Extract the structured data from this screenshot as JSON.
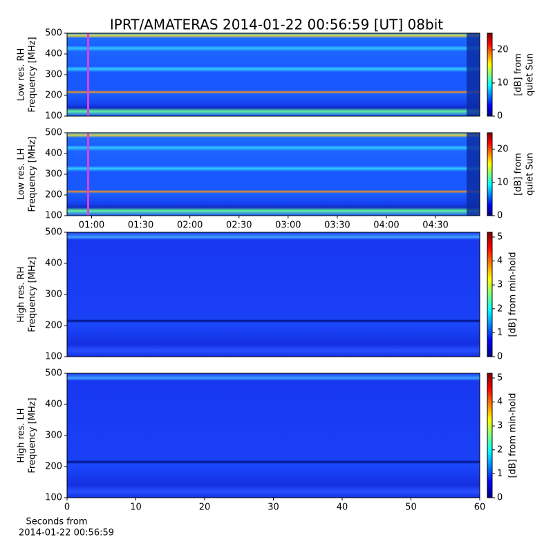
{
  "title": "IPRT/AMATERAS 2014-01-22 00:56:59 [UT]   08bit",
  "chart_data": [
    {
      "type": "heatmap",
      "ylabel": [
        "Low res. RH",
        "Frequency [MHz]"
      ],
      "ylim": [
        100,
        500
      ],
      "yticks": [
        100,
        200,
        300,
        400,
        500
      ],
      "xlim": [
        "00:45",
        "04:57"
      ],
      "colorbar": {
        "label": [
          "[dB] from",
          "quiet Sun"
        ],
        "lim": [
          0,
          25
        ],
        "ticks": [
          0,
          10,
          20
        ]
      }
    },
    {
      "type": "heatmap",
      "ylabel": [
        "Low res. LH",
        "Frequency [MHz]"
      ],
      "ylim": [
        100,
        500
      ],
      "yticks": [
        100,
        200,
        300,
        400,
        500
      ],
      "xlim": [
        "00:45",
        "04:57"
      ],
      "xticks": [
        "01:00",
        "01:30",
        "02:00",
        "02:30",
        "03:00",
        "03:30",
        "04:00",
        "04:30"
      ],
      "colorbar": {
        "label": [
          "[dB] from",
          "quiet Sun"
        ],
        "lim": [
          0,
          25
        ],
        "ticks": [
          0,
          10,
          20
        ]
      }
    },
    {
      "type": "heatmap",
      "ylabel": [
        "High res. RH",
        "Frequency [MHz]"
      ],
      "ylim": [
        100,
        500
      ],
      "yticks": [
        100,
        200,
        300,
        400,
        500
      ],
      "xlim": [
        0,
        60
      ],
      "colorbar": {
        "label": [
          "[dB] from min-hold"
        ],
        "lim": [
          0,
          5.2
        ],
        "ticks": [
          0,
          1,
          2,
          3,
          4,
          5
        ]
      }
    },
    {
      "type": "heatmap",
      "ylabel": [
        "High res. LH",
        "Frequency [MHz]"
      ],
      "ylim": [
        100,
        500
      ],
      "yticks": [
        100,
        200,
        300,
        400,
        500
      ],
      "xlim": [
        0,
        60
      ],
      "xticks": [
        0,
        10,
        20,
        30,
        40,
        50,
        60
      ],
      "xlabel": [
        "Seconds from",
        "2014-01-22 00:56:59"
      ],
      "colorbar": {
        "label": [
          "[dB] from min-hold"
        ],
        "lim": [
          0,
          5.2
        ],
        "ticks": [
          0,
          1,
          2,
          3,
          4,
          5
        ]
      }
    }
  ]
}
